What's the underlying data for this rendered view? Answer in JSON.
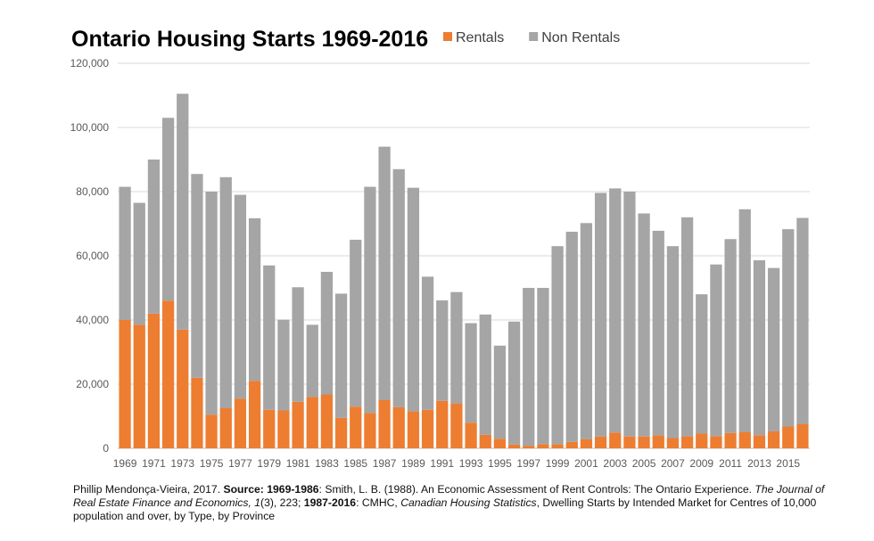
{
  "chart_data": {
    "type": "bar",
    "stacked": true,
    "title": "Ontario Housing Starts 1969-2016",
    "legend_position": "top",
    "grid": true,
    "ylim": [
      0,
      120000
    ],
    "y_ticks": [
      "0",
      "20,000",
      "40,000",
      "60,000",
      "80,000",
      "100,000",
      "120,000"
    ],
    "categories": [
      "1969",
      "1970",
      "1971",
      "1972",
      "1973",
      "1974",
      "1975",
      "1976",
      "1977",
      "1978",
      "1979",
      "1980",
      "1981",
      "1982",
      "1983",
      "1984",
      "1985",
      "1986",
      "1987",
      "1988",
      "1989",
      "1990",
      "1991",
      "1992",
      "1993",
      "1994",
      "1995",
      "1996",
      "1997",
      "1998",
      "1999",
      "2000",
      "2001",
      "2002",
      "2003",
      "2004",
      "2005",
      "2006",
      "2007",
      "2008",
      "2009",
      "2010",
      "2011",
      "2012",
      "2013",
      "2014",
      "2015",
      "2016"
    ],
    "x_tick_labels": [
      "1969",
      "1971",
      "1973",
      "1975",
      "1977",
      "1979",
      "1981",
      "1983",
      "1985",
      "1987",
      "1989",
      "1991",
      "1993",
      "1995",
      "1997",
      "1999",
      "2001",
      "2003",
      "2005",
      "2007",
      "2009",
      "2011",
      "2013",
      "2015"
    ],
    "series": [
      {
        "name": "Rentals",
        "color": "#ED7D31",
        "values": [
          40000,
          38500,
          42000,
          46000,
          37000,
          22000,
          10500,
          12500,
          15500,
          21000,
          12000,
          11800,
          14500,
          16000,
          16800,
          9500,
          13000,
          11000,
          15000,
          12800,
          11500,
          12000,
          14800,
          14000,
          8000,
          4200,
          3000,
          1200,
          800,
          1300,
          1300,
          2000,
          2800,
          3700,
          4900,
          3700,
          3700,
          4000,
          3200,
          3800,
          4600,
          3800,
          4800,
          5000,
          4100,
          5300,
          6800,
          7500
        ]
      },
      {
        "name": "Non Rentals",
        "color": "#A5A5A5",
        "values": [
          41500,
          38000,
          48000,
          57000,
          73500,
          63500,
          69500,
          72000,
          63500,
          50700,
          45000,
          28300,
          35700,
          22500,
          38200,
          38700,
          52000,
          70500,
          79000,
          74200,
          69700,
          41500,
          31300,
          34700,
          31000,
          37500,
          29000,
          38300,
          49200,
          48700,
          61700,
          65500,
          67400,
          75900,
          76100,
          76300,
          69500,
          63800,
          59800,
          68200,
          43400,
          53500,
          60400,
          69500,
          54500,
          50900,
          61500,
          64300
        ]
      }
    ]
  },
  "caption": {
    "author": "Phillip Mendonça-Vieira, 2017. ",
    "source_label": "Source: ",
    "range1_label": "1969-1986",
    "ref1_pre": ": Smith, L. B. (1988). An Economic Assessment of Rent Controls: The Ontario Experience. ",
    "ref1_journal": "The Journal of Real Estate Finance and Economics, 1",
    "ref1_post": "(3), 223; ",
    "range2_label": "1987-2016",
    "ref2_pre": ": CMHC, ",
    "ref2_title": "Canadian Housing Statistics",
    "ref2_post": ", Dwelling Starts by Intended Market for Centres of 10,000 population and over, by Type, by Province"
  }
}
